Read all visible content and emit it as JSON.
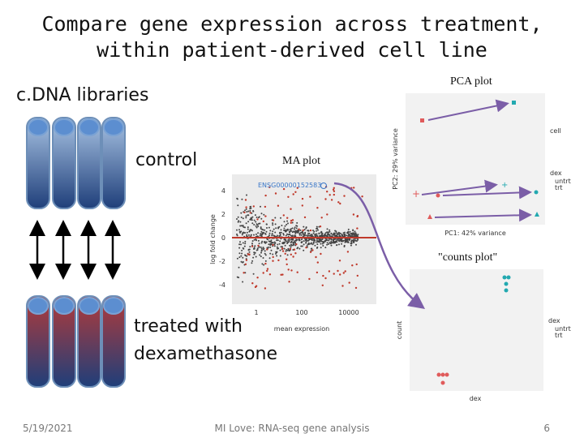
{
  "title": {
    "line1": "Compare gene expression across treatment,",
    "line2": "within patient-derived cell line"
  },
  "left": {
    "heading": "c.DNA libraries",
    "control": "control",
    "treated": {
      "line1": "treated with",
      "line2": "dexamethasone"
    }
  },
  "ma_plot": {
    "label": "MA plot",
    "gene": "ENSG00000152583",
    "y_axis": "log fold change",
    "x_axis": "mean expression",
    "y_ticks": [
      "4",
      "2",
      "0",
      "-2",
      "-4"
    ],
    "x_ticks": [
      "1",
      "100",
      "10000"
    ]
  },
  "pca_plot": {
    "label": "PCA plot",
    "x_axis": "PC1: 42% variance",
    "y_axis": "PC2: 29% variance",
    "legend_cell": "cell",
    "legend_dex": "dex",
    "dex_levels": [
      "untrt",
      "trt"
    ]
  },
  "counts_plot": {
    "label": "\"counts plot\"",
    "x_axis": "dex",
    "y_axis": "count",
    "legend": "dex",
    "dex_levels": [
      "untrt",
      "trt"
    ]
  },
  "footer": {
    "date": "5/19/2021",
    "center": "MI Love: RNA-seq gene analysis",
    "page": "6"
  }
}
